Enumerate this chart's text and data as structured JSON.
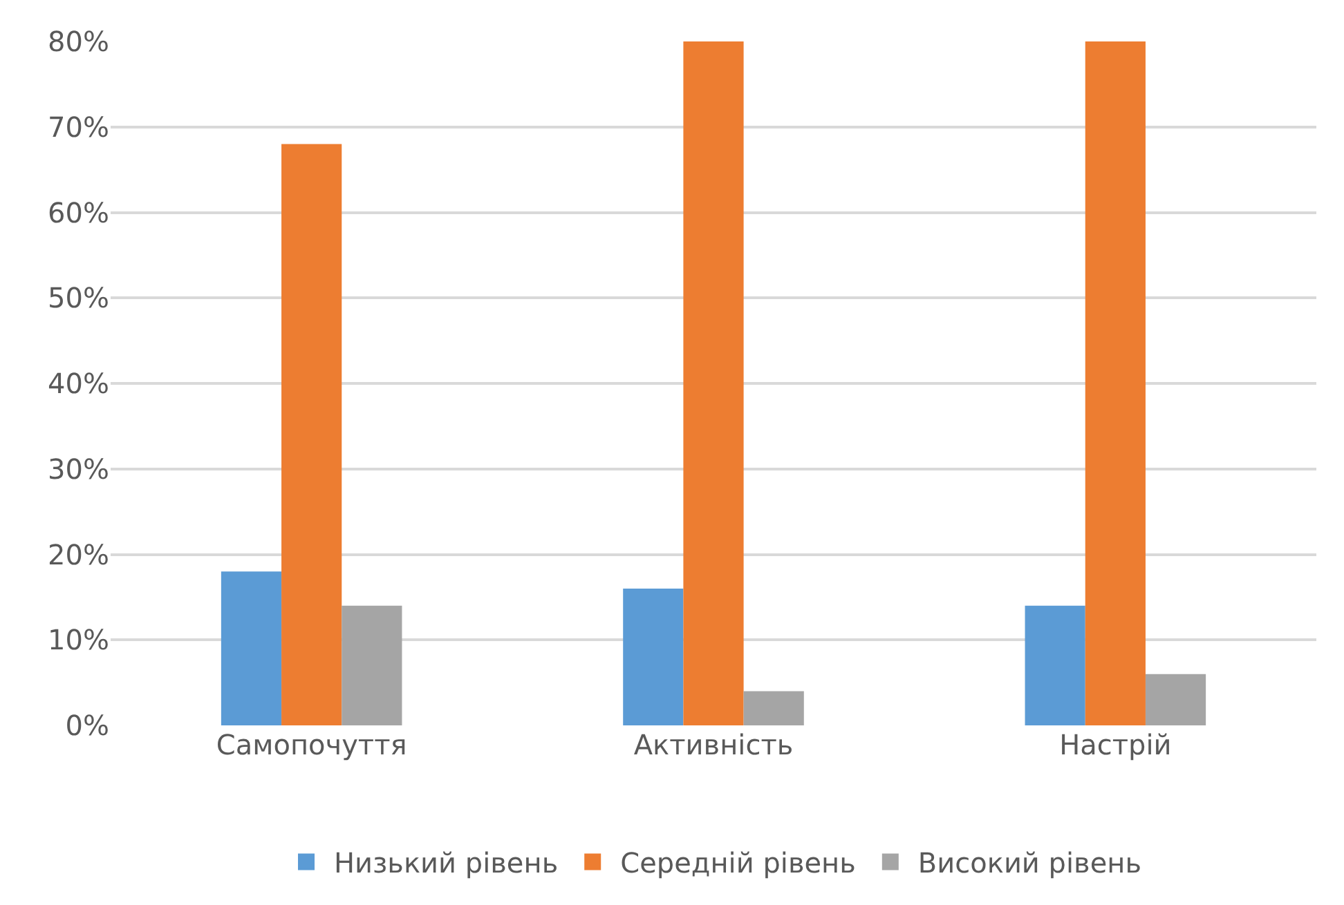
{
  "chart_data": {
    "type": "bar",
    "categories": [
      "Самопочуття",
      "Активність",
      "Настрій"
    ],
    "series": [
      {
        "name": "Низький рівень",
        "color": "#5b9bd5",
        "values": [
          18,
          16,
          14
        ]
      },
      {
        "name": "Середній рівень",
        "color": "#ed7d31",
        "values": [
          68,
          80,
          80
        ]
      },
      {
        "name": "Високий рівень",
        "color": "#a5a5a5",
        "values": [
          14,
          4,
          6
        ]
      }
    ],
    "ylim": [
      0,
      80
    ],
    "yticks": [
      {
        "value": 0,
        "label": "0%"
      },
      {
        "value": 10,
        "label": "10%"
      },
      {
        "value": 20,
        "label": "20%"
      },
      {
        "value": 30,
        "label": "30%"
      },
      {
        "value": 40,
        "label": "40%"
      },
      {
        "value": 50,
        "label": "50%"
      },
      {
        "value": 60,
        "label": "60%"
      },
      {
        "value": 70,
        "label": "70%"
      },
      {
        "value": 80,
        "label": "80%"
      }
    ],
    "grid": "y",
    "legend": "bottom"
  }
}
